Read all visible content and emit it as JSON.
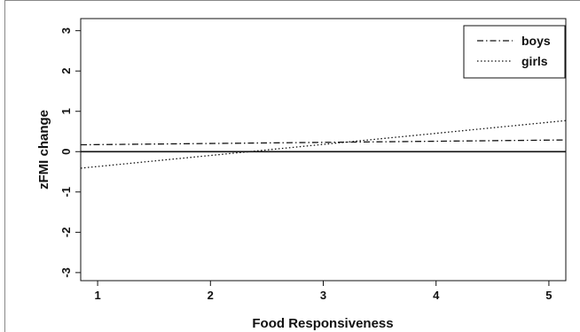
{
  "chart_data": {
    "type": "line",
    "title": "",
    "xlabel": "Food Responsiveness",
    "ylabel": "zFMI change",
    "xlim": [
      0.85,
      5.15
    ],
    "ylim": [
      -3.2,
      3.3
    ],
    "x_ticks": [
      1,
      2,
      3,
      4,
      5
    ],
    "y_ticks": [
      -3,
      -2,
      -1,
      0,
      1,
      2,
      3
    ],
    "reference_line_y": 0,
    "grid": false,
    "legend_position": "top-right",
    "series": [
      {
        "name": "boys",
        "style": "dash-dot",
        "x": [
          0.85,
          5.15
        ],
        "y": [
          0.17,
          0.29
        ]
      },
      {
        "name": "girls",
        "style": "dotted",
        "x": [
          0.85,
          5.15
        ],
        "y": [
          -0.41,
          0.77
        ]
      }
    ]
  }
}
